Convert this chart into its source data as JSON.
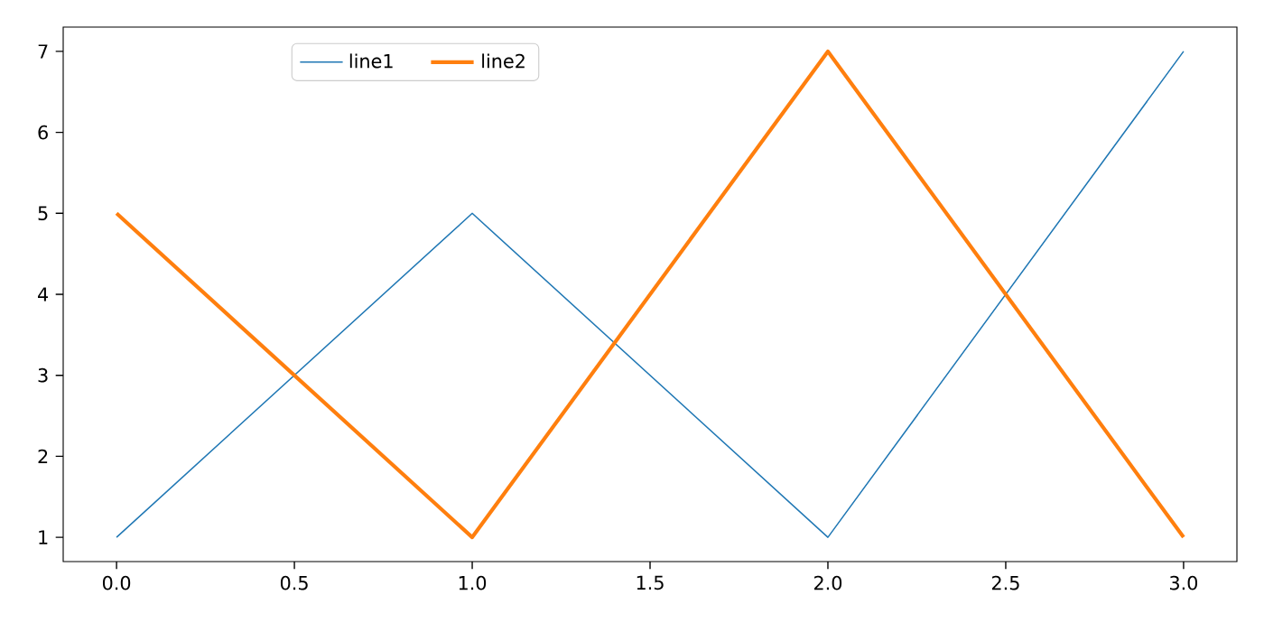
{
  "chart_data": {
    "type": "line",
    "x": [
      0,
      1,
      2,
      3
    ],
    "series": [
      {
        "name": "line1",
        "color": "#1f77b4",
        "values": [
          1,
          5,
          1,
          7
        ]
      },
      {
        "name": "line2",
        "color": "#ff7f0e",
        "values": [
          5,
          1,
          7,
          1
        ]
      }
    ],
    "xlim": [
      -0.15,
      3.15
    ],
    "ylim": [
      0.7,
      7.3
    ],
    "xticks": [
      {
        "value": 0,
        "label": "0.0"
      },
      {
        "value": 0.5,
        "label": "0.5"
      },
      {
        "value": 1,
        "label": "1.0"
      },
      {
        "value": 1.5,
        "label": "1.5"
      },
      {
        "value": 2,
        "label": "2.0"
      },
      {
        "value": 2.5,
        "label": "2.5"
      },
      {
        "value": 3,
        "label": "3.0"
      }
    ],
    "yticks": [
      1,
      2,
      3,
      4,
      5,
      6,
      7
    ],
    "legend": "top",
    "grid": false,
    "marker": "none",
    "line_style": "solid"
  }
}
